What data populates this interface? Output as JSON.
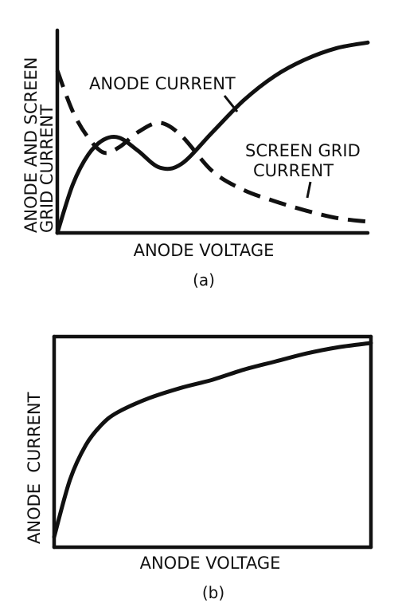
{
  "chart_data": [
    {
      "type": "line",
      "caption": "(a)",
      "xlabel": "ANODE VOLTAGE",
      "ylabel_lines": [
        "ANODE AND SCREEN",
        "GRID CURRENT"
      ],
      "xlim": [
        0,
        10
      ],
      "ylim": [
        0,
        10
      ],
      "grid": false,
      "series": [
        {
          "name": "ANODE CURRENT",
          "style": "solid",
          "x": [
            0,
            0.5,
            1.0,
            1.5,
            2.0,
            2.6,
            3.3,
            4.0,
            5.0,
            6.0,
            7.0,
            8.0,
            9.0,
            10.0
          ],
          "y": [
            0,
            2.6,
            4.2,
            5.0,
            5.1,
            4.4,
            3.5,
            3.7,
            5.4,
            7.1,
            8.4,
            9.3,
            9.9,
            10.2
          ]
        },
        {
          "name": "SCREEN GRID CURRENT",
          "style": "dashed",
          "x": [
            0,
            0.5,
            1.0,
            1.5,
            2.0,
            2.6,
            3.3,
            4.0,
            5.0,
            6.0,
            7.0,
            8.0,
            9.0,
            10.0
          ],
          "y": [
            8.7,
            6.5,
            5.1,
            4.3,
            4.6,
            5.4,
            5.9,
            5.2,
            3.3,
            2.3,
            1.7,
            1.2,
            0.8,
            0.6
          ]
        }
      ]
    },
    {
      "type": "line",
      "caption": "(b)",
      "xlabel": "ANODE VOLTAGE",
      "ylabel_lines": [
        "ANODE  CURRENT"
      ],
      "xlim": [
        0,
        10
      ],
      "ylim": [
        0,
        10
      ],
      "grid": false,
      "series": [
        {
          "name": "",
          "style": "solid",
          "x": [
            0,
            0.5,
            1.0,
            1.5,
            2.0,
            3.0,
            4.0,
            5.0,
            6.0,
            7.0,
            8.0,
            9.0,
            10.0
          ],
          "y": [
            0.5,
            3.3,
            5.0,
            6.0,
            6.6,
            7.3,
            7.8,
            8.2,
            8.7,
            9.1,
            9.5,
            9.8,
            10.0
          ]
        }
      ]
    }
  ]
}
